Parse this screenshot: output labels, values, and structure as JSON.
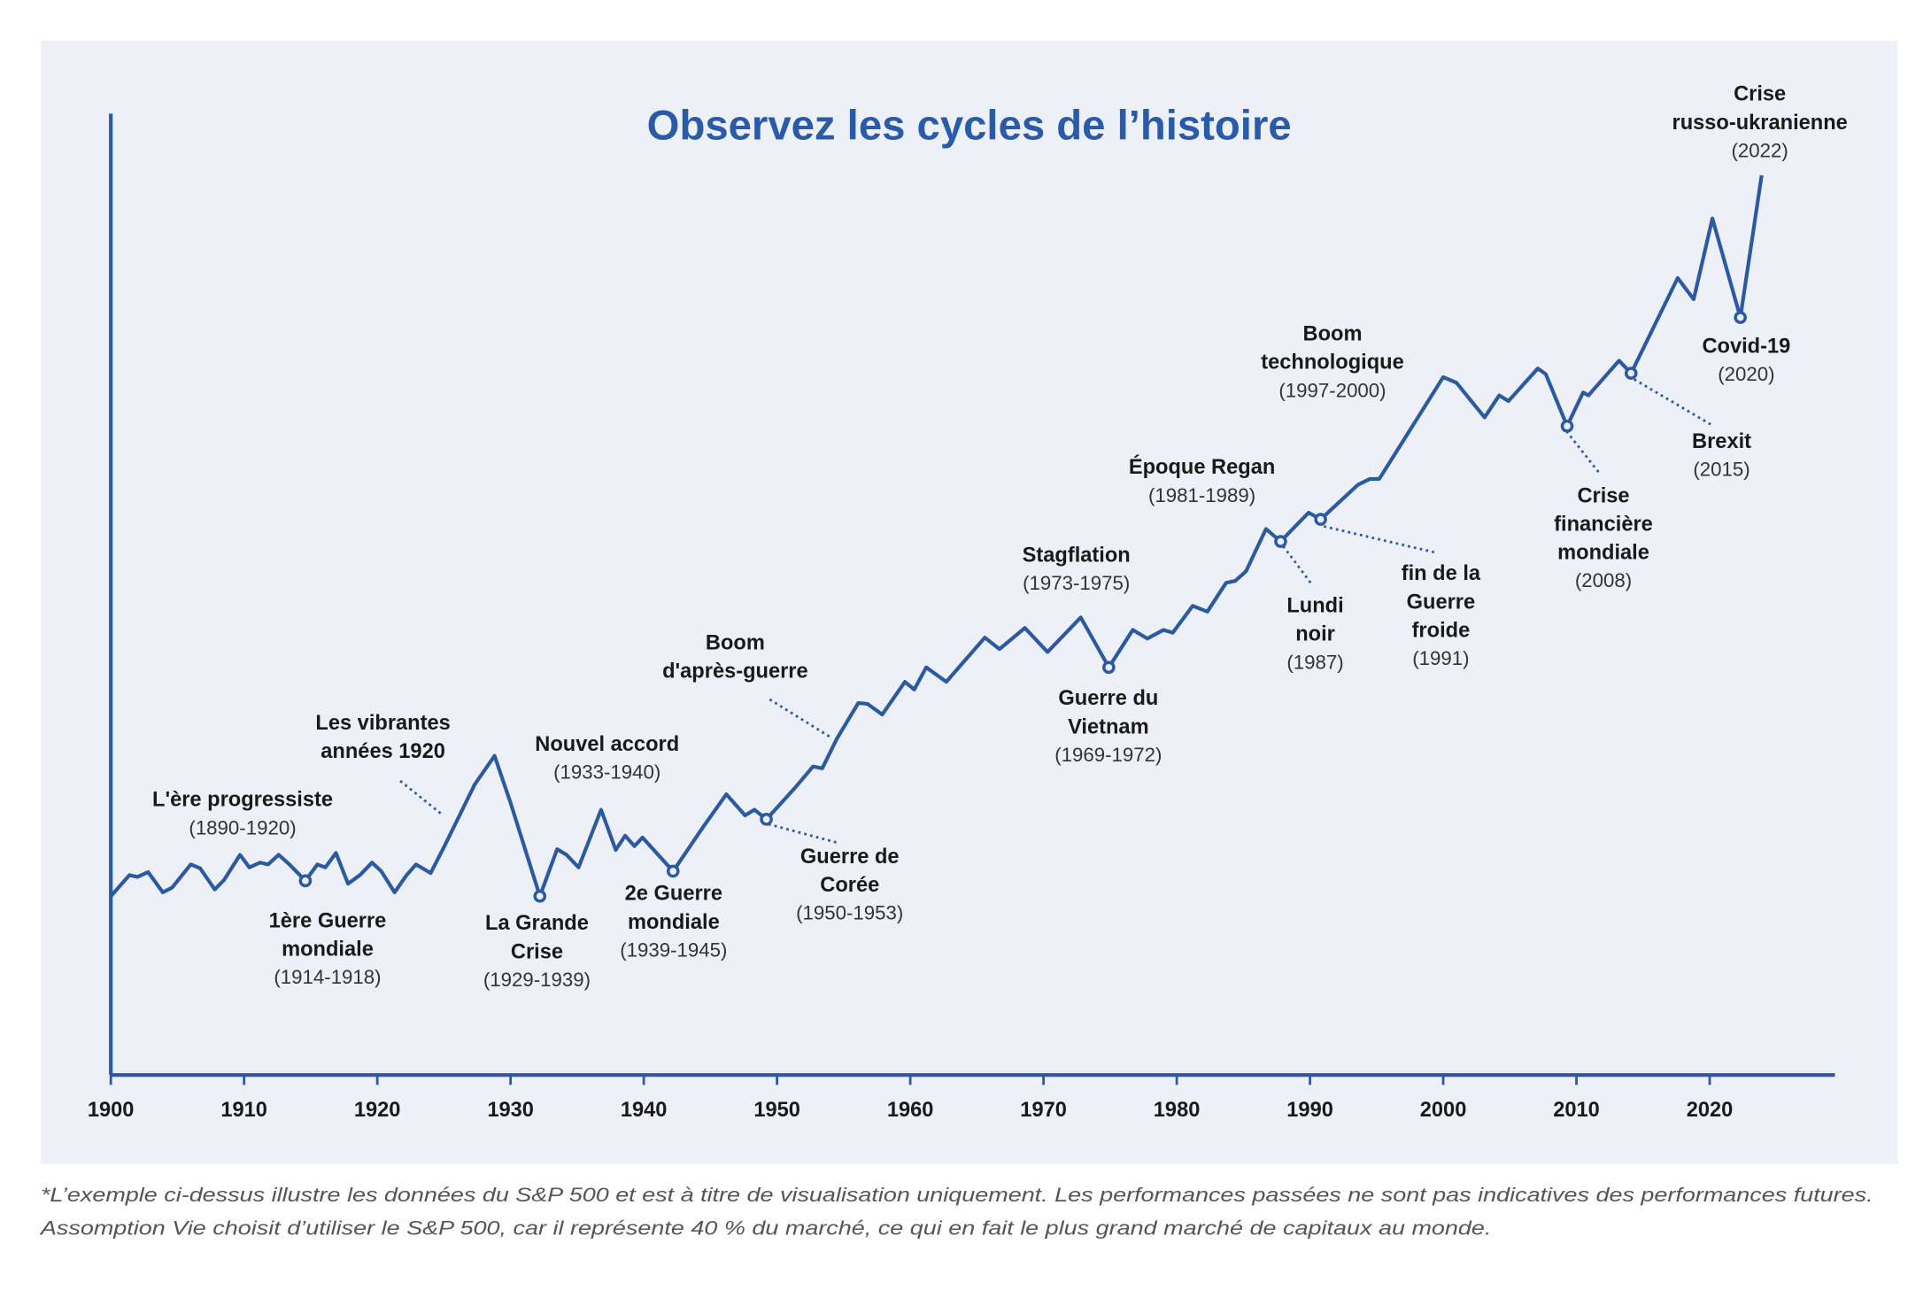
{
  "chart_data": {
    "type": "line",
    "title": "Observez les cycles de l’histoire",
    "x": [
      1900.0,
      1901.4,
      1902.0,
      1902.8,
      1903.9,
      1904.6,
      1906.0,
      1906.7,
      1907.8,
      1908.5,
      1909.7,
      1910.4,
      1911.2,
      1911.8,
      1912.6,
      1913.4,
      1914.6,
      1915.5,
      1916.1,
      1916.9,
      1917.8,
      1918.7,
      1919.6,
      1920.3,
      1921.3,
      1922.2,
      1922.9,
      1924.0,
      1925.0,
      1927.3,
      1928.8,
      1930.0,
      1932.2,
      1933.5,
      1934.2,
      1935.1,
      1936.8,
      1937.9,
      1938.6,
      1939.3,
      1939.9,
      1942.2,
      1944.4,
      1946.2,
      1947.6,
      1948.3,
      1949.2,
      1951.3,
      1952.7,
      1953.4,
      1954.5,
      1956.1,
      1956.8,
      1957.9,
      1959.6,
      1960.3,
      1961.2,
      1962.7,
      1965.6,
      1966.7,
      1968.6,
      1970.3,
      1972.8,
      1974.9,
      1976.7,
      1977.8,
      1979.0,
      1979.7,
      1981.2,
      1982.3,
      1983.7,
      1984.4,
      1985.2,
      1986.7,
      1987.8,
      1988.7,
      1989.9,
      1990.8,
      1993.6,
      1994.5,
      1995.2,
      2000.0,
      2001.0,
      2003.1,
      2004.2,
      2004.9,
      2007.1,
      2007.7,
      2009.3,
      2010.5,
      2010.9,
      2013.2,
      2014.1,
      2017.6,
      2018.8,
      2020.2,
      2022.3,
      2023.9
    ],
    "values": [
      18.6,
      20.8,
      20.6,
      21.1,
      19.0,
      19.5,
      21.9,
      21.5,
      19.3,
      20.3,
      22.9,
      21.6,
      22.1,
      21.9,
      22.9,
      21.9,
      20.2,
      21.9,
      21.6,
      23.1,
      19.9,
      20.8,
      22.1,
      21.2,
      19.0,
      20.8,
      21.9,
      21.0,
      23.7,
      30.2,
      33.2,
      28.3,
      18.6,
      23.5,
      22.9,
      21.6,
      27.6,
      23.4,
      24.9,
      23.8,
      24.7,
      21.2,
      25.7,
      29.2,
      27.0,
      27.6,
      26.6,
      29.8,
      32.1,
      31.9,
      35.0,
      38.7,
      38.6,
      37.5,
      40.9,
      40.1,
      42.4,
      40.9,
      45.5,
      44.3,
      46.5,
      44.0,
      47.6,
      42.4,
      46.3,
      45.4,
      46.3,
      46.0,
      48.8,
      48.2,
      51.2,
      51.4,
      52.4,
      56.8,
      55.5,
      56.8,
      58.5,
      57.8,
      61.4,
      62.0,
      62.0,
      72.6,
      72.0,
      68.4,
      70.7,
      70.1,
      73.5,
      72.9,
      67.5,
      71.0,
      70.7,
      74.3,
      73.0,
      82.9,
      80.7,
      89.1,
      78.8,
      93.6
    ],
    "color": "#2c5aa0",
    "xlim": [
      1900,
      2029.4
    ],
    "xticks": [
      1900,
      1910,
      1920,
      1930,
      1940,
      1950,
      1960,
      1970,
      1980,
      1990,
      2000,
      2010,
      2020
    ],
    "ylim": [
      0,
      100
    ],
    "annotations": [
      {
        "lines": [
          "L'ère progressiste"
        ],
        "date": "(1890-1920)"
      },
      {
        "lines": [
          "1ère Guerre",
          "mondiale"
        ],
        "date": "(1914-1918)"
      },
      {
        "lines": [
          "Les vibrantes",
          "années 1920"
        ]
      },
      {
        "lines": [
          "La Grande",
          "Crise"
        ],
        "date": "(1929-1939)"
      },
      {
        "lines": [
          "Nouvel accord"
        ],
        "date": "(1933-1940)"
      },
      {
        "lines": [
          "2e Guerre",
          "mondiale"
        ],
        "date": "(1939-1945)"
      },
      {
        "lines": [
          "Boom",
          "d'après-guerre"
        ]
      },
      {
        "lines": [
          "Guerre de",
          "Corée"
        ],
        "date": "(1950-1953)"
      },
      {
        "lines": [
          "Stagflation"
        ],
        "date": "(1973-1975)"
      },
      {
        "lines": [
          "Guerre du",
          "Vietnam"
        ],
        "date": "(1969-1972)"
      },
      {
        "lines": [
          "Époque Regan"
        ],
        "date": "(1981-1989)"
      },
      {
        "lines": [
          "Lundi",
          "noir"
        ],
        "date": "(1987)"
      },
      {
        "lines": [
          "fin de la",
          "Guerre",
          "froide"
        ],
        "date": "(1991)"
      },
      {
        "lines": [
          "Boom",
          "technologique"
        ],
        "date": "(1997-2000)"
      },
      {
        "lines": [
          "Crise",
          "financière",
          "mondiale"
        ],
        "date": "(2008)"
      },
      {
        "lines": [
          "Brexit"
        ],
        "date": "(2015)"
      },
      {
        "lines": [
          "Covid-19"
        ],
        "date": "(2020)"
      },
      {
        "lines": [
          "Crise",
          "russo-ukranienne"
        ],
        "date": "(2022)"
      }
    ],
    "notes": [
      "*L’exemple ci-dessus illustre les données du S&P 500 et est à titre de visualisation uniquement. Les performances passées ne sont pas indicatives des performances futures.",
      "Assomption Vie choisit d’utiliser le S&P 500, car il représente 40 % du marché, ce qui en fait le plus grand marché de capitaux au monde."
    ]
  }
}
